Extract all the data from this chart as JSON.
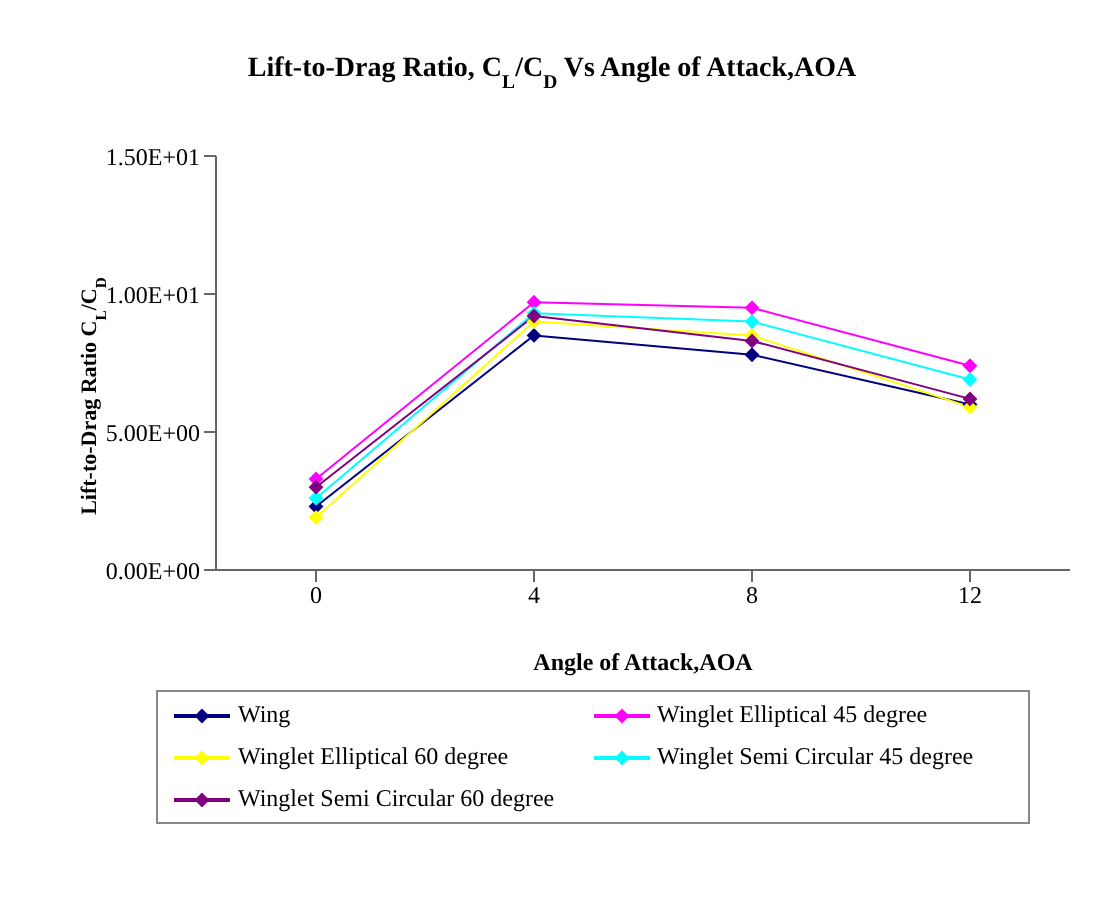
{
  "chart_data": {
    "type": "line",
    "title": "Lift-to-Drag Ratio, C$_{L}$/C$_{D}$ Vs Angle of Attack,AOA",
    "xlabel": "Angle of Attack,AOA",
    "ylabel": "Lift-to-Drag Ratio C$_{L}$/C$_{D}$",
    "categories": [
      "0",
      "4",
      "8",
      "12"
    ],
    "series": [
      {
        "name": "Wing",
        "color": "#000080",
        "values": [
          2.3,
          8.5,
          7.8,
          6.0
        ]
      },
      {
        "name": "Winglet Elliptical 45 degree",
        "color": "#ff00ff",
        "values": [
          3.3,
          9.7,
          9.5,
          7.4
        ]
      },
      {
        "name": "Winglet Elliptical 60 degree",
        "color": "#ffff00",
        "values": [
          1.9,
          9.0,
          8.5,
          5.9
        ]
      },
      {
        "name": "Winglet Semi Circular 45 degree",
        "color": "#00ffff",
        "values": [
          2.6,
          9.3,
          9.0,
          6.9
        ]
      },
      {
        "name": "Winglet Semi Circular 60 degree",
        "color": "#800080",
        "values": [
          3.0,
          9.2,
          8.3,
          6.2
        ]
      }
    ],
    "ylim": [
      0,
      15
    ],
    "yticks": [
      {
        "value": 0,
        "label": "0.00E+00"
      },
      {
        "value": 5,
        "label": "5.00E+00"
      },
      {
        "value": 10,
        "label": "1.00E+01"
      },
      {
        "value": 15,
        "label": "1.50E+01"
      }
    ],
    "grid": false,
    "legend": "bottom",
    "marker": "diamond",
    "line_style": "solid"
  }
}
